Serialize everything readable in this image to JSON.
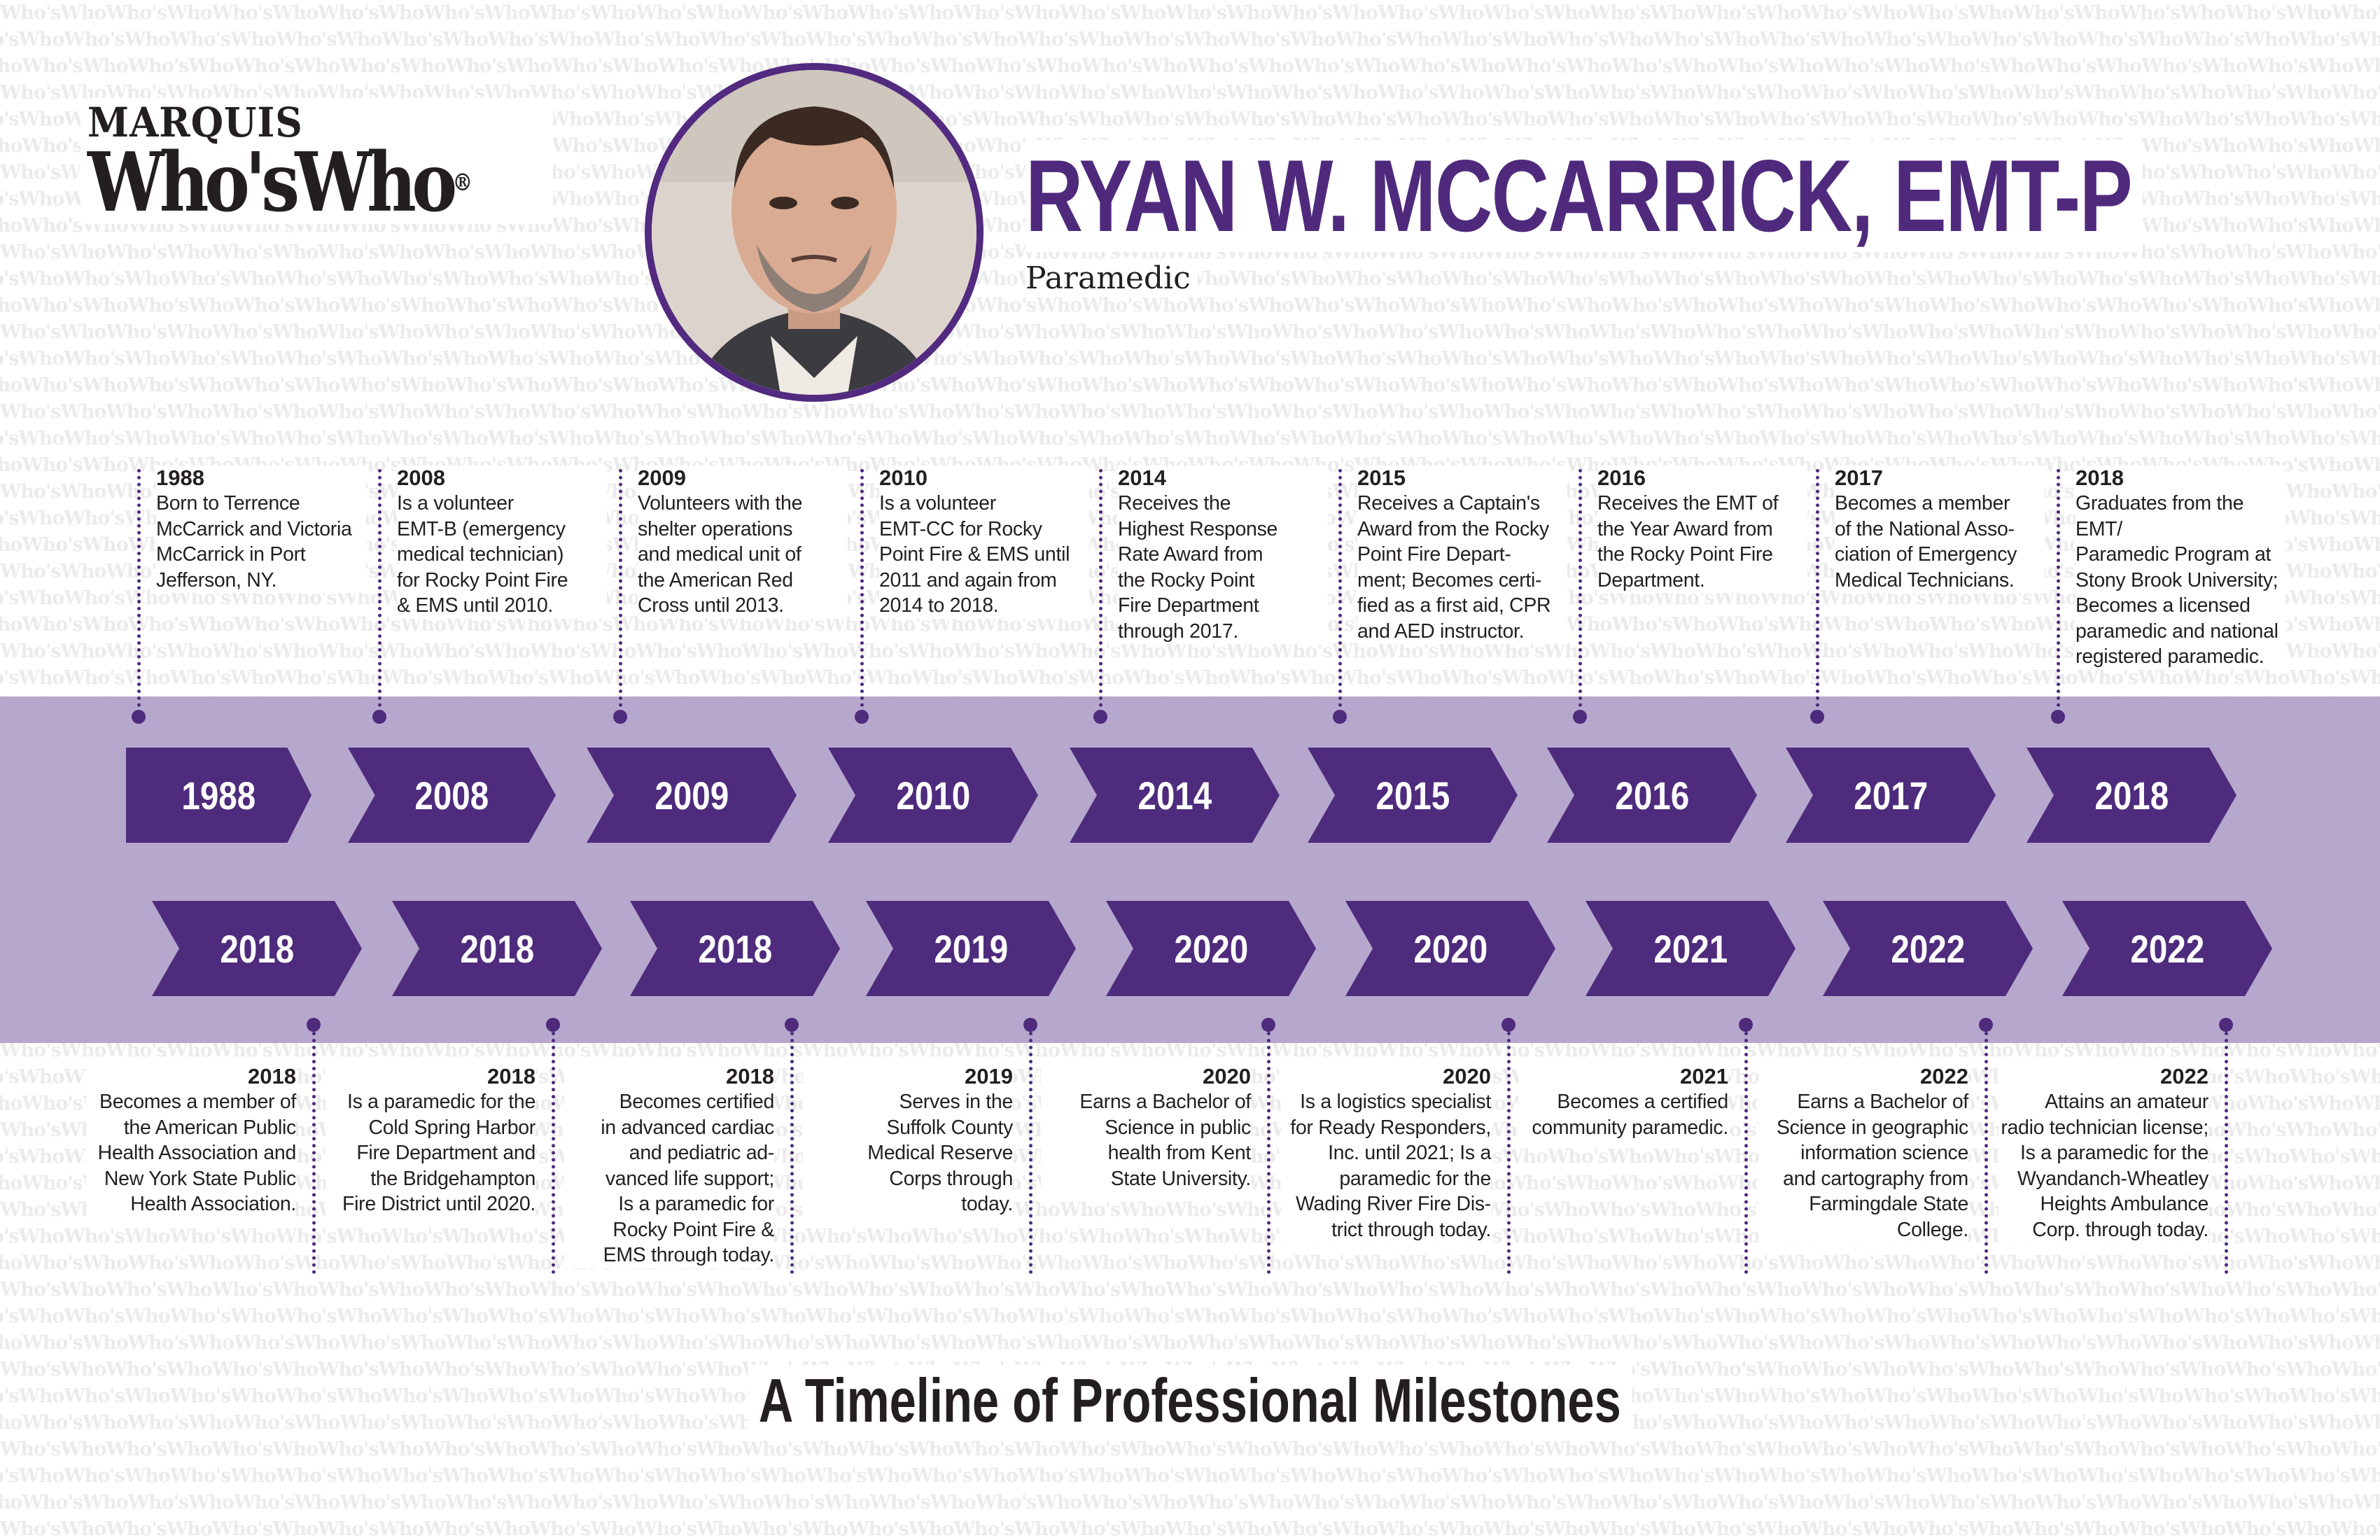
{
  "header": {
    "logo_line1": "MARQUIS",
    "logo_line2": "Who'sWho",
    "logo_reg": "®",
    "name": "RYAN W. MCCARRICK, EMT-P",
    "title": "Paramedic"
  },
  "watermark_text": "Who'sWho",
  "colors": {
    "accent": "#4e2b7c",
    "band": "#b6a8cd",
    "text": "#231f20"
  },
  "top_row": [
    {
      "year": "1988",
      "lines": [
        "Born to Terrence",
        "McCarrick and Victoria",
        "McCarrick in Port",
        "Jefferson, NY."
      ]
    },
    {
      "year": "2008",
      "lines": [
        "Is a volunteer",
        "EMT-B (emergency",
        "medical technician)",
        "for Rocky Point Fire",
        "& EMS until 2010."
      ]
    },
    {
      "year": "2009",
      "lines": [
        "Volunteers with the",
        "shelter operations",
        "and medical unit of",
        "the American Red",
        "Cross until 2013."
      ]
    },
    {
      "year": "2010",
      "lines": [
        "Is a volunteer",
        "EMT-CC for Rocky",
        "Point Fire & EMS until",
        "2011 and again from",
        "2014 to 2018."
      ]
    },
    {
      "year": "2014",
      "lines": [
        "Receives the",
        "Highest Response",
        "Rate Award from",
        "the Rocky Point",
        "Fire Department",
        "through 2017."
      ]
    },
    {
      "year": "2015",
      "lines": [
        "Receives a Captain's",
        "Award from the Rocky",
        "Point Fire Depart-",
        "ment; Becomes certi-",
        "fied as a first aid, CPR",
        "and AED instructor."
      ]
    },
    {
      "year": "2016",
      "lines": [
        "Receives the EMT of",
        "the Year Award from",
        "the Rocky Point Fire",
        "Department."
      ]
    },
    {
      "year": "2017",
      "lines": [
        "Becomes a member",
        "of the National Asso-",
        "ciation of Emergency",
        "Medical Technicians."
      ]
    },
    {
      "year": "2018",
      "lines": [
        "Graduates from the EMT/",
        "Paramedic Program at",
        "Stony Brook University;",
        "Becomes a licensed",
        "paramedic and national",
        "registered paramedic."
      ]
    }
  ],
  "bottom_row": [
    {
      "year": "2018",
      "lines": [
        "Becomes a member of",
        "the American Public",
        "Health Association and",
        "New York State Public",
        "Health Association."
      ]
    },
    {
      "year": "2018",
      "lines": [
        "Is a paramedic for the",
        "Cold Spring Harbor",
        "Fire Department and",
        "the Bridgehampton",
        "Fire District until 2020."
      ]
    },
    {
      "year": "2018",
      "lines": [
        "Becomes certified",
        "in advanced cardiac",
        "and pediatric ad-",
        "vanced life support;",
        "Is a paramedic for",
        "Rocky Point Fire &",
        "EMS through today."
      ]
    },
    {
      "year": "2019",
      "lines": [
        "Serves in the",
        "Suffolk County",
        "Medical Reserve",
        "Corps through",
        "today."
      ]
    },
    {
      "year": "2020",
      "lines": [
        "Earns a Bachelor of",
        "Science in public",
        "health from Kent",
        "State University."
      ]
    },
    {
      "year": "2020",
      "lines": [
        "Is a logistics specialist",
        "for Ready Responders,",
        "Inc. until 2021; Is a",
        "paramedic for the",
        "Wading River Fire Dis-",
        "trict through today."
      ]
    },
    {
      "year": "2021",
      "lines": [
        "Becomes a certified",
        "community paramedic."
      ]
    },
    {
      "year": "2022",
      "lines": [
        "Earns a Bachelor of",
        "Science in geographic",
        "information science",
        "and cartography from",
        "Farmingdale State",
        "College."
      ]
    },
    {
      "year": "2022",
      "lines": [
        "Attains an amateur",
        "radio technician license;",
        "Is a paramedic for the",
        "Wyandanch-Wheatley",
        "Heights Ambulance",
        "Corp. through today."
      ]
    }
  ],
  "footer_title": "A Timeline of Professional Milestones"
}
